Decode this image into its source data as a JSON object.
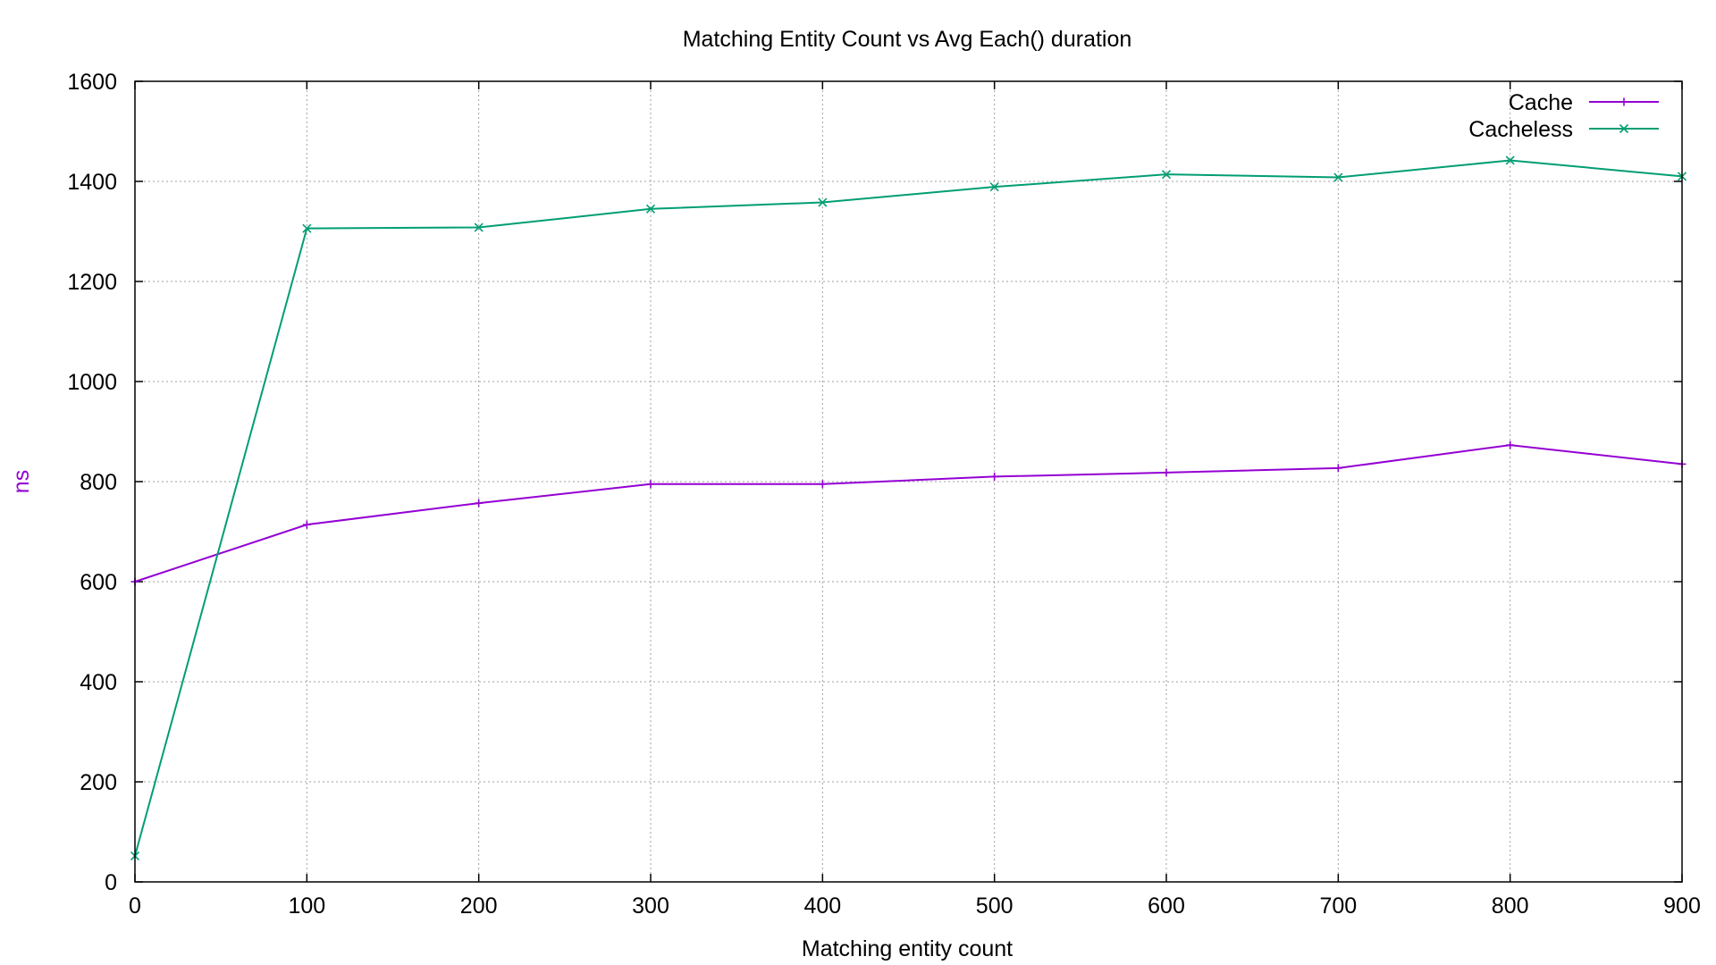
{
  "chart_data": {
    "type": "line",
    "title": "Matching Entity Count vs Avg Each() duration",
    "xlabel": "Matching entity count",
    "ylabel": "ns",
    "ylabel_color": "#9400d3",
    "xlim": [
      0,
      900
    ],
    "ylim": [
      0,
      1600
    ],
    "xticks": [
      0,
      100,
      200,
      300,
      400,
      500,
      600,
      700,
      800,
      900
    ],
    "yticks": [
      0,
      200,
      400,
      600,
      800,
      1000,
      1200,
      1400,
      1600
    ],
    "grid": true,
    "legend_position": "top-right",
    "x": [
      0,
      100,
      200,
      300,
      400,
      500,
      600,
      700,
      800,
      900
    ],
    "series": [
      {
        "name": "Cache",
        "color": "#9400d3",
        "marker": "plus",
        "values": [
          600,
          714,
          757,
          795,
          795,
          810,
          818,
          827,
          873,
          835
        ]
      },
      {
        "name": "Cacheless",
        "color": "#009e73",
        "marker": "cross",
        "values": [
          52,
          1306,
          1308,
          1345,
          1358,
          1389,
          1414,
          1408,
          1442,
          1410
        ]
      }
    ]
  }
}
